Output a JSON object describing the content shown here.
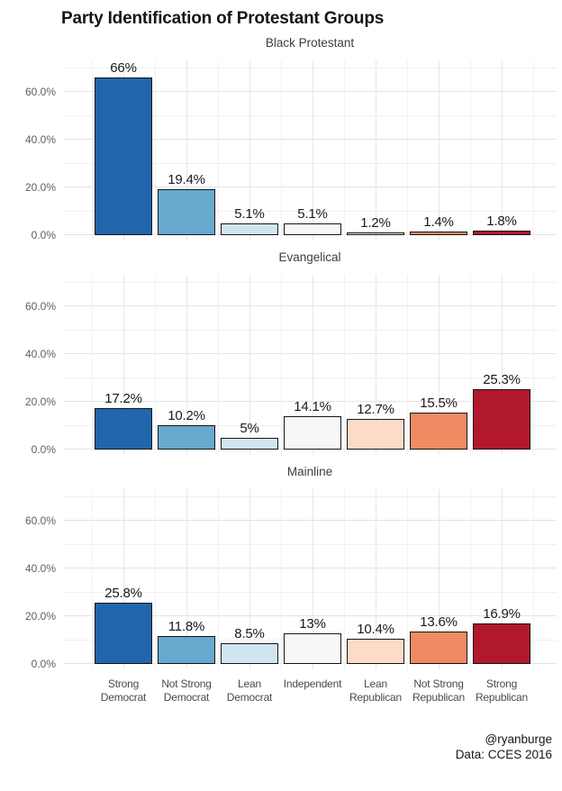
{
  "title": "Party Identification of Protestant Groups",
  "footer": {
    "author": "@ryanburge",
    "source": "Data: CCES 2016"
  },
  "chart_data": {
    "type": "bar",
    "title": "Party Identification of Protestant Groups",
    "categories": [
      "Strong Democrat",
      "Not Strong Democrat",
      "Lean Democrat",
      "Independent",
      "Lean Republican",
      "Not Strong Republican",
      "Strong Republican"
    ],
    "category_label_lines": [
      [
        "Strong",
        "Democrat"
      ],
      [
        "Not Strong",
        "Democrat"
      ],
      [
        "Lean",
        "Democrat"
      ],
      [
        "Independent",
        ""
      ],
      [
        "Lean",
        "Republican"
      ],
      [
        "Not Strong",
        "Republican"
      ],
      [
        "Strong",
        "Republican"
      ]
    ],
    "facets": [
      {
        "name": "Black Protestant",
        "values": [
          66,
          19.4,
          5.1,
          5.1,
          1.2,
          1.4,
          1.8
        ],
        "labels": [
          "66%",
          "19.4%",
          "5.1%",
          "5.1%",
          "1.2%",
          "1.4%",
          "1.8%"
        ]
      },
      {
        "name": "Evangelical",
        "values": [
          17.2,
          10.2,
          5,
          14.1,
          12.7,
          15.5,
          25.3
        ],
        "labels": [
          "17.2%",
          "10.2%",
          "5%",
          "14.1%",
          "12.7%",
          "15.5%",
          "25.3%"
        ]
      },
      {
        "name": "Mainline",
        "values": [
          25.8,
          11.8,
          8.5,
          13,
          10.4,
          13.6,
          16.9
        ],
        "labels": [
          "25.8%",
          "11.8%",
          "8.5%",
          "13%",
          "10.4%",
          "13.6%",
          "16.9%"
        ]
      }
    ],
    "bar_colors": [
      "#2166ac",
      "#67a9cf",
      "#d1e5f0",
      "#f7f7f7",
      "#fddbc7",
      "#ef8a62",
      "#b2182b"
    ],
    "bar_border_color": "#151515",
    "y_ticks": [
      {
        "value": 0,
        "label": "0.0%"
      },
      {
        "value": 20,
        "label": "20.0%"
      },
      {
        "value": 40,
        "label": "40.0%"
      },
      {
        "value": 60,
        "label": "60.0%"
      }
    ],
    "y_minor_ticks": [
      10,
      30,
      50,
      70
    ],
    "ylim": [
      0,
      73
    ],
    "grid": true,
    "legend_position": "none",
    "value_label_position": "above-bar"
  }
}
